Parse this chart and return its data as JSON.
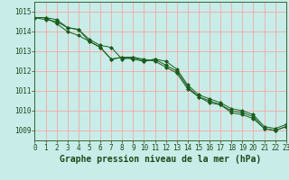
{
  "xlabel": "Graphe pression niveau de la mer (hPa)",
  "ylim": [
    1008.5,
    1015.5
  ],
  "xlim": [
    0,
    23
  ],
  "yticks": [
    1009,
    1010,
    1011,
    1012,
    1013,
    1014,
    1015
  ],
  "xticks": [
    0,
    1,
    2,
    3,
    4,
    5,
    6,
    7,
    8,
    9,
    10,
    11,
    12,
    13,
    14,
    15,
    16,
    17,
    18,
    19,
    20,
    21,
    22,
    23
  ],
  "background_color": "#c8ece8",
  "grid_color": "#ff9999",
  "line_color": "#1a5c1a",
  "marker_color": "#1a5c1a",
  "series1": [
    1014.7,
    1014.7,
    1014.6,
    1014.2,
    1014.1,
    1013.6,
    1013.3,
    1013.2,
    1012.6,
    1012.7,
    1012.5,
    1012.6,
    1012.5,
    1012.1,
    1011.3,
    1010.8,
    1010.6,
    1010.4,
    1010.1,
    1010.0,
    1009.8,
    1009.2,
    1009.1,
    1009.3
  ],
  "series2": [
    1014.7,
    1014.6,
    1014.5,
    1014.2,
    1014.1,
    1013.5,
    1013.2,
    1012.6,
    1012.7,
    1012.6,
    1012.5,
    1012.6,
    1012.3,
    1012.0,
    1011.2,
    1010.7,
    1010.5,
    1010.3,
    1010.0,
    1009.9,
    1009.7,
    1009.1,
    1009.0,
    1009.2
  ],
  "series3": [
    1014.7,
    1014.7,
    1014.4,
    1014.0,
    1013.8,
    1013.5,
    1013.2,
    1012.6,
    1012.7,
    1012.7,
    1012.6,
    1012.5,
    1012.2,
    1011.9,
    1011.1,
    1010.7,
    1010.4,
    1010.3,
    1009.9,
    1009.8,
    1009.6,
    1009.1,
    1009.0,
    1009.2
  ],
  "tick_fontsize": 5.5,
  "xlabel_fontsize": 7.0
}
